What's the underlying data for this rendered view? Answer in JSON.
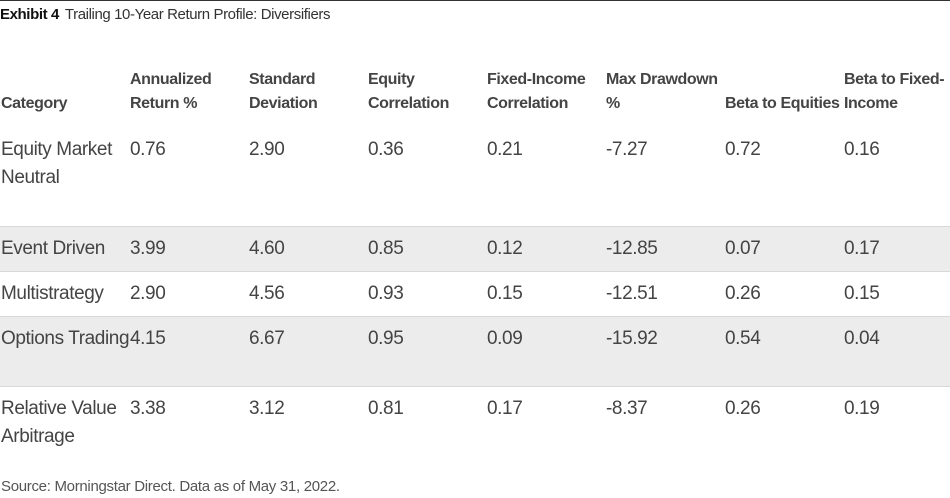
{
  "exhibit": {
    "label": "Exhibit 4",
    "title": "Trailing 10-Year Return Profile: Diversifiers"
  },
  "table": {
    "columns": [
      "Category",
      "Annualized Return %",
      "Standard Deviation",
      "Equity Correlation",
      "Fixed-Income Correlation",
      "Max Drawdown %",
      "Beta to Equities",
      "Beta to Fixed-Income"
    ],
    "rows": [
      [
        "Equity Market Neutral",
        "0.76",
        "2.90",
        "0.36",
        "0.21",
        "-7.27",
        "0.72",
        "0.16"
      ],
      [
        "Event Driven",
        "3.99",
        "4.60",
        "0.85",
        "0.12",
        "-12.85",
        "0.07",
        "0.17"
      ],
      [
        "Multistrategy",
        "2.90",
        "4.56",
        "0.93",
        "0.15",
        "-12.51",
        "0.26",
        "0.15"
      ],
      [
        "Options Trading",
        "4.15",
        "6.67",
        "0.95",
        "0.09",
        "-15.92",
        "0.54",
        "0.04"
      ],
      [
        "Relative Value Arbitrage",
        "3.38",
        "3.12",
        "0.81",
        "0.17",
        "-8.37",
        "0.26",
        "0.19"
      ]
    ]
  },
  "source": "Source: Morningstar Direct.  Data as of May 31, 2022."
}
